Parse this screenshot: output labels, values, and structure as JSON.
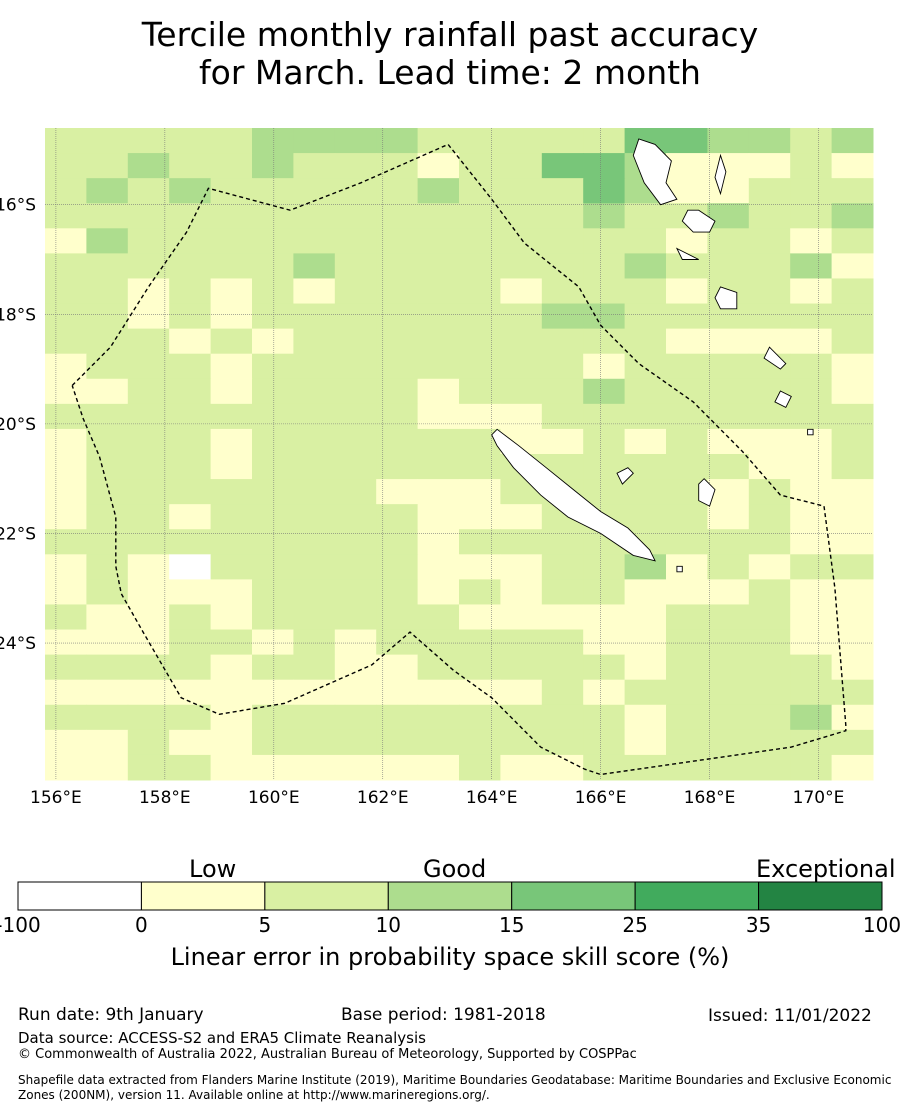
{
  "title_line1": "Tercile monthly rainfall past accuracy",
  "title_line2": "for March. Lead time: 2 month",
  "map": {
    "lat_labels": [
      "16°S",
      "18°S",
      "20°S",
      "22°S",
      "24°S"
    ],
    "lon_labels": [
      "156°E",
      "158°E",
      "160°E",
      "162°E",
      "164°E",
      "166°E",
      "168°E",
      "170°E"
    ],
    "lon_range": [
      155.8,
      171.0
    ],
    "lat_range": [
      -26.5,
      -14.6
    ],
    "grid_lats": [
      -16,
      -18,
      -20,
      -22,
      -24
    ],
    "grid_lons": [
      156,
      158,
      160,
      162,
      164,
      166,
      168,
      170
    ],
    "skill_bins": [
      "cccccddddccccceeddcd",
      "ccdccdcccbcceedbbbcb",
      "cdcdcccccdcccedbbccc",
      "cccccccccccccdccdccd",
      "bdcccccccccccccbccbc",
      "ccccccdcccccccdcccdb",
      "ccbcbcbccccbcccbccbc",
      "ccbcbcccccccddcccccc",
      "cccbcbcccccccccbbbbc",
      "bcccbccccccccbcccccb",
      "bbccbccccbcccdcccccb",
      "cccccccccbbbcccccccc",
      "bcccbccccccbbcbcbbbc",
      "bcccbccccccccccccbbc",
      "bcccccccbbbcccccbcbb",
      "bccbcccccbbbccccbcbb",
      "cccccccccbccccccccbb",
      "bcbacccccbbbccdbcbcc",
      "bcbbbccccbcbccbbbcbb",
      "cbbcbcccccbbbbbcccbb",
      "bbbccbcbcccccbbcccbb",
      "ccccbccbbcccccbccccb",
      "bbbbbbbbbbbbcbcccccc",
      "ccccbcccccccccbcccdb",
      "bbcbbcccccccccbccccc",
      "bbccbbbbbbcbbccccccb"
    ],
    "colors": {
      "a": "#ffffff",
      "b": "#ffffcc",
      "c": "#d9f0a3",
      "d": "#addd8e",
      "e": "#78c679",
      "f": "#41ab5d",
      "g": "#238443"
    },
    "eez_boundary": [
      [
        156.3,
        -19.3
      ],
      [
        157.0,
        -18.6
      ],
      [
        157.7,
        -17.5
      ],
      [
        158.4,
        -16.5
      ],
      [
        158.8,
        -15.7
      ],
      [
        160.3,
        -16.1
      ],
      [
        161.6,
        -15.6
      ],
      [
        163.2,
        -14.9
      ],
      [
        164.0,
        -15.9
      ],
      [
        164.6,
        -16.7
      ],
      [
        165.6,
        -17.5
      ],
      [
        166.0,
        -18.2
      ],
      [
        166.7,
        -18.9
      ],
      [
        167.7,
        -19.6
      ],
      [
        168.6,
        -20.5
      ],
      [
        169.3,
        -21.3
      ],
      [
        170.1,
        -21.5
      ],
      [
        170.3,
        -23.0
      ],
      [
        170.5,
        -25.5
      ],
      [
        170.5,
        -25.6
      ],
      [
        169.5,
        -25.9
      ],
      [
        166.0,
        -26.4
      ],
      [
        165.7,
        -26.3
      ],
      [
        164.9,
        -25.9
      ],
      [
        164.0,
        -25.0
      ],
      [
        163.3,
        -24.5
      ],
      [
        162.5,
        -23.8
      ],
      [
        161.8,
        -24.4
      ],
      [
        160.2,
        -25.1
      ],
      [
        159.0,
        -25.3
      ],
      [
        158.3,
        -25.0
      ],
      [
        157.6,
        -23.8
      ],
      [
        157.2,
        -23.1
      ],
      [
        157.1,
        -22.6
      ],
      [
        157.1,
        -21.7
      ],
      [
        156.8,
        -20.6
      ],
      [
        156.5,
        -19.9
      ],
      [
        156.3,
        -19.3
      ]
    ],
    "islands": [
      [
        [
          164.1,
          -20.1
        ],
        [
          164.5,
          -20.4
        ],
        [
          165.0,
          -20.8
        ],
        [
          165.5,
          -21.2
        ],
        [
          166.0,
          -21.6
        ],
        [
          166.5,
          -21.9
        ],
        [
          166.9,
          -22.3
        ],
        [
          167.0,
          -22.5
        ],
        [
          166.6,
          -22.4
        ],
        [
          166.0,
          -22.0
        ],
        [
          165.4,
          -21.7
        ],
        [
          164.9,
          -21.3
        ],
        [
          164.4,
          -20.8
        ],
        [
          164.1,
          -20.4
        ],
        [
          164.0,
          -20.2
        ]
      ],
      [
        [
          167.0,
          -14.9
        ],
        [
          167.3,
          -15.2
        ],
        [
          167.2,
          -15.6
        ],
        [
          167.4,
          -15.9
        ],
        [
          167.1,
          -16.0
        ],
        [
          166.8,
          -15.6
        ],
        [
          166.6,
          -15.1
        ],
        [
          166.7,
          -14.8
        ]
      ],
      [
        [
          167.8,
          -16.1
        ],
        [
          168.1,
          -16.3
        ],
        [
          168.0,
          -16.5
        ],
        [
          167.7,
          -16.5
        ],
        [
          167.5,
          -16.3
        ],
        [
          167.6,
          -16.1
        ]
      ],
      [
        [
          168.2,
          -17.5
        ],
        [
          168.5,
          -17.6
        ],
        [
          168.5,
          -17.9
        ],
        [
          168.2,
          -17.9
        ],
        [
          168.1,
          -17.7
        ]
      ],
      [
        [
          169.1,
          -18.6
        ],
        [
          169.4,
          -18.9
        ],
        [
          169.3,
          -19.0
        ],
        [
          169.0,
          -18.8
        ]
      ],
      [
        [
          169.3,
          -19.4
        ],
        [
          169.5,
          -19.5
        ],
        [
          169.4,
          -19.7
        ],
        [
          169.2,
          -19.6
        ]
      ],
      [
        [
          167.9,
          -21.0
        ],
        [
          168.1,
          -21.2
        ],
        [
          168.0,
          -21.5
        ],
        [
          167.8,
          -21.4
        ],
        [
          167.8,
          -21.1
        ]
      ],
      [
        [
          166.5,
          -20.8
        ],
        [
          166.6,
          -20.9
        ],
        [
          166.4,
          -21.1
        ],
        [
          166.3,
          -20.9
        ]
      ],
      [
        [
          168.2,
          -15.1
        ],
        [
          168.3,
          -15.4
        ],
        [
          168.2,
          -15.8
        ],
        [
          168.1,
          -15.5
        ]
      ],
      [
        [
          167.4,
          -16.8
        ],
        [
          167.8,
          -17.0
        ],
        [
          167.5,
          -17.0
        ]
      ],
      [
        [
          167.4,
          -22.6
        ],
        [
          167.5,
          -22.6
        ],
        [
          167.5,
          -22.7
        ],
        [
          167.4,
          -22.7
        ]
      ],
      [
        [
          169.8,
          -20.1
        ],
        [
          169.9,
          -20.1
        ],
        [
          169.9,
          -20.2
        ],
        [
          169.8,
          -20.2
        ]
      ]
    ]
  },
  "colorbar": {
    "category_labels": [
      "Low",
      "Good",
      "Exceptional"
    ],
    "bounds": [
      "-100",
      "0",
      "5",
      "10",
      "15",
      "25",
      "35",
      "100"
    ],
    "bin_colors": [
      "#ffffff",
      "#ffffcc",
      "#d9f0a3",
      "#addd8e",
      "#78c679",
      "#41ab5d",
      "#238443"
    ],
    "label": "Linear error in probability space skill score (%)"
  },
  "footer": {
    "run_date": "Run date: 9th January",
    "base_period": "Base period: 1981-2018",
    "issued": "Issued: 11/01/2022",
    "data_source": "Data source: ACCESS-S2 and ERA5 Climate Reanalysis",
    "copyright": "© Commonwealth of Australia 2022, Australian Bureau of Meteorology, Supported by COSPPac",
    "shapefile": "Shapefile data extracted from Flanders Marine Institute (2019), Maritime Boundaries Geodatabase: Maritime Boundaries and Exclusive Economic Zones (200NM), version 11. Available online at http://www.marineregions.org/."
  }
}
